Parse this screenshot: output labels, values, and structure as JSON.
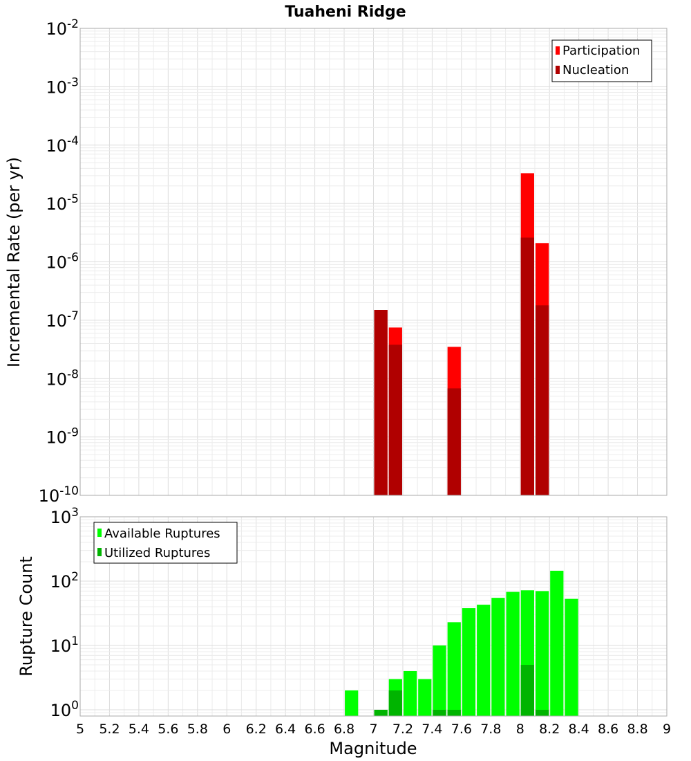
{
  "colors": {
    "participation": "#ff0000",
    "nucleation": "#b00000",
    "available": "#00ff00",
    "utilized": "#00b400",
    "grid_minor": "#ececec",
    "grid_major": "#dcdcdc",
    "frame": "#aaaaaa"
  },
  "chart_data": [
    {
      "type": "bar",
      "title": "Tuaheni Ridge",
      "xlabel": "",
      "ylabel": "Incremental Rate (per yr)",
      "yscale": "log",
      "xlim": [
        5,
        9
      ],
      "ylim": [
        1e-10,
        0.01
      ],
      "bin_width": 0.1,
      "y_ticks": [
        "10^-10",
        "10^-9",
        "10^-8",
        "10^-7",
        "10^-6",
        "10^-5",
        "10^-4",
        "10^-3",
        "10^-2"
      ],
      "legend_position": "top-right",
      "grid": true,
      "series": [
        {
          "name": "Participation",
          "x": [
            7.05,
            7.15,
            7.55,
            8.05,
            8.15
          ],
          "values": [
            1.5e-07,
            7.5e-08,
            3.5e-08,
            3.3e-05,
            2.1e-06
          ]
        },
        {
          "name": "Nucleation",
          "x": [
            7.05,
            7.15,
            7.55,
            8.05,
            8.15
          ],
          "values": [
            1.5e-07,
            3.8e-08,
            6.8e-09,
            2.6e-06,
            1.8e-07
          ]
        }
      ]
    },
    {
      "type": "bar",
      "xlabel": "Magnitude",
      "ylabel": "Rupture Count",
      "yscale": "log",
      "xlim": [
        5,
        9
      ],
      "ylim": [
        0.8,
        1000
      ],
      "bin_width": 0.1,
      "x_ticks": [
        "5",
        "5.2",
        "5.4",
        "5.6",
        "5.8",
        "6",
        "6.2",
        "6.4",
        "6.6",
        "6.8",
        "7",
        "7.2",
        "7.4",
        "7.6",
        "7.8",
        "8",
        "8.2",
        "8.4",
        "8.6",
        "8.8",
        "9"
      ],
      "y_ticks": [
        "10^0",
        "10^1",
        "10^2",
        "10^3"
      ],
      "legend_position": "top-left",
      "grid": true,
      "series": [
        {
          "name": "Available Ruptures",
          "x": [
            6.85,
            7.05,
            7.15,
            7.25,
            7.35,
            7.45,
            7.55,
            7.65,
            7.75,
            7.85,
            7.95,
            8.05,
            8.15,
            8.25,
            8.35
          ],
          "values": [
            2,
            1,
            3,
            4,
            3,
            10,
            23,
            38,
            43,
            55,
            68,
            72,
            70,
            145,
            53
          ]
        },
        {
          "name": "Utilized Ruptures",
          "x": [
            7.05,
            7.15,
            7.45,
            7.55,
            8.05,
            8.15
          ],
          "values": [
            1,
            2,
            1,
            1,
            5,
            1
          ]
        }
      ]
    }
  ]
}
